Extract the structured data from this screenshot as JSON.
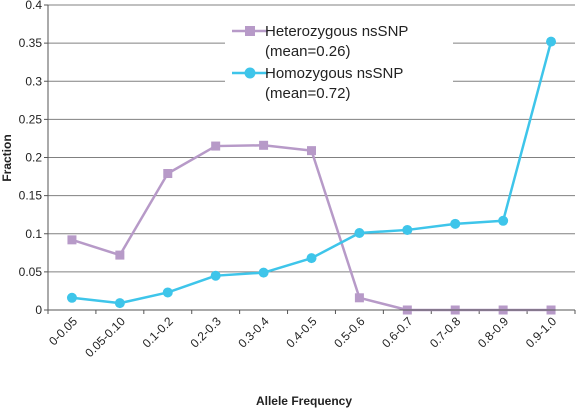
{
  "chart_data": {
    "type": "line",
    "xlabel": "Allele Frequency",
    "ylabel": "Fraction",
    "ylim": [
      0,
      0.4
    ],
    "yticks": [
      "0",
      "0.05",
      "0.1",
      "0.15",
      "0.2",
      "0.25",
      "0.3",
      "0.35",
      "0.4"
    ],
    "grid": true,
    "legend_position": "top-center",
    "categories": [
      "0-0.05",
      "0.05-0.10",
      "0.1-0.2",
      "0.2-0.3",
      "0.3-0.4",
      "0.4-0.5",
      "0.5-0.6",
      "0.6-0.7",
      "0.7-0.8",
      "0.8-0.9",
      "0.9-1.0"
    ],
    "series": [
      {
        "name": "Heterozygous nsSNP",
        "label_line2": "(mean=0.26)",
        "marker": "square",
        "color": "#b79ac8",
        "values": [
          0.092,
          0.072,
          0.179,
          0.215,
          0.216,
          0.209,
          0.016,
          0.0,
          0.0,
          0.0,
          0.0
        ]
      },
      {
        "name": "Homozygous nsSNP",
        "label_line2": "(mean=0.72)",
        "marker": "circle",
        "color": "#3ec5ea",
        "values": [
          0.016,
          0.009,
          0.023,
          0.045,
          0.049,
          0.068,
          0.101,
          0.105,
          0.113,
          0.117,
          0.352
        ]
      }
    ]
  }
}
